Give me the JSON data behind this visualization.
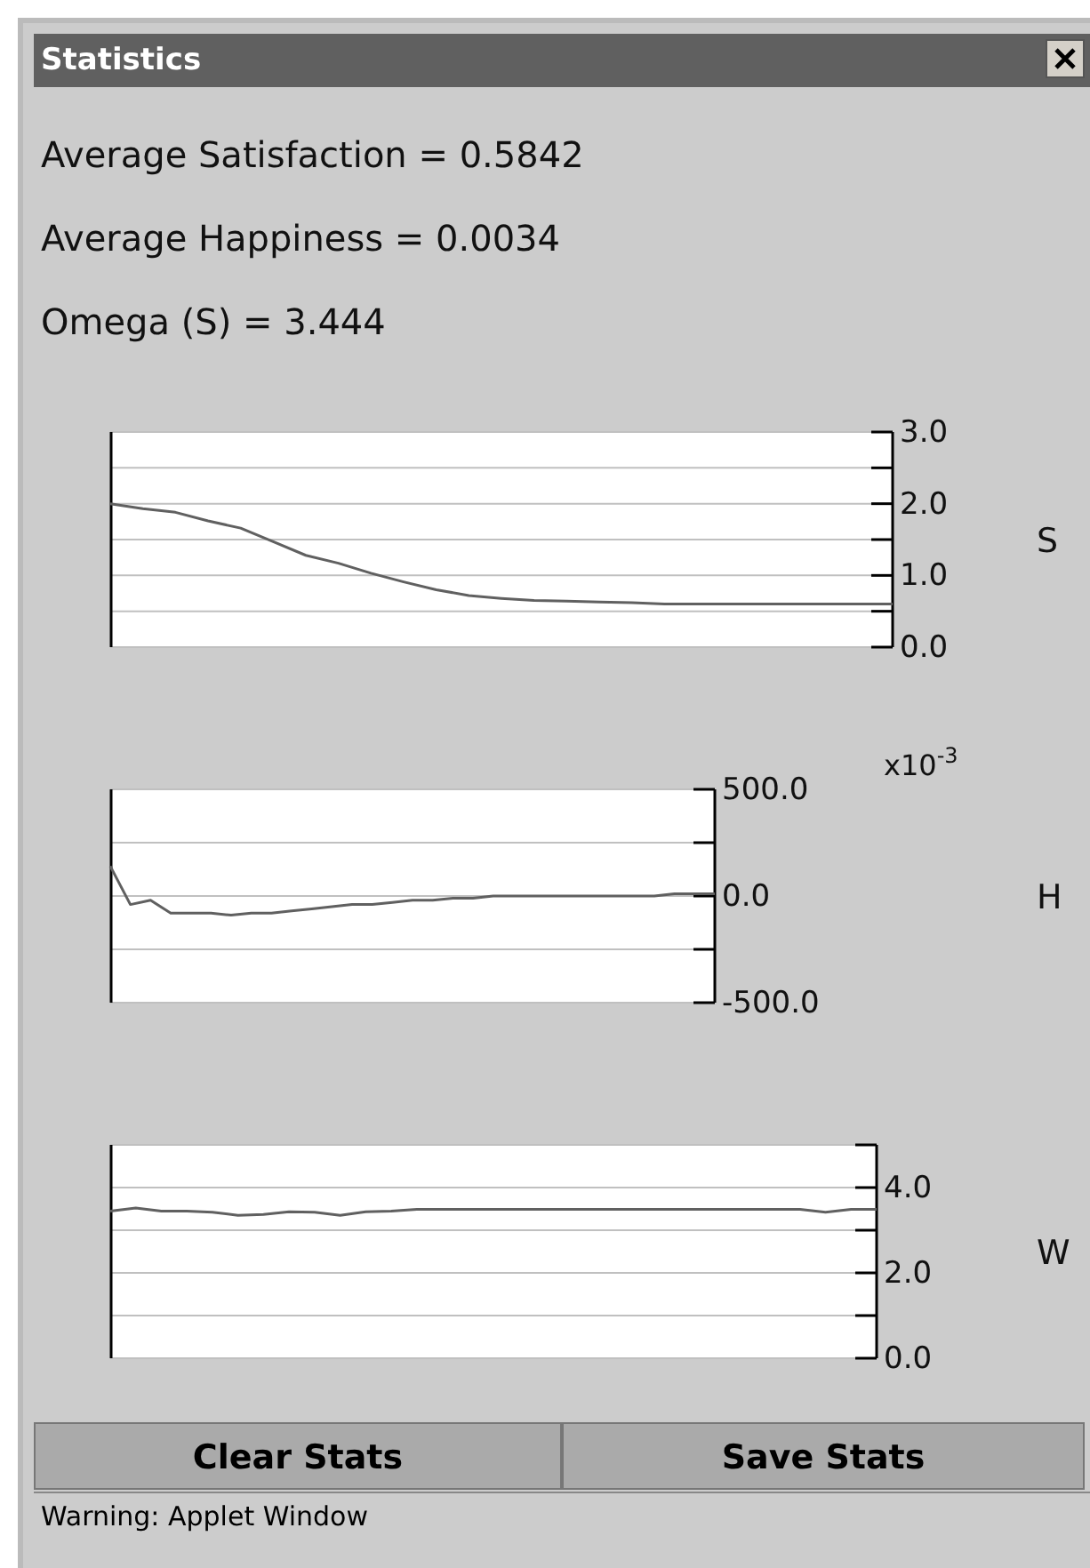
{
  "chart_data": [
    {
      "type": "line",
      "title": "Statistics",
      "annotations": [
        "Average Satisfaction = 0.5842",
        "Average Happiness = 0.0034",
        "Omega (S) = 3.444"
      ],
      "ylabel": "S",
      "categories": [
        null,
        null,
        null,
        null,
        null,
        null,
        null,
        null,
        null,
        null,
        null,
        null,
        null,
        null,
        null,
        null,
        null,
        null,
        null,
        null,
        null,
        null,
        null,
        null,
        null
      ],
      "series": [
        {
          "color": "#606060",
          "values": [
            2.0,
            1.93,
            1.88,
            1.76,
            1.66,
            1.47,
            1.28,
            1.17,
            1.03,
            0.91,
            0.8,
            0.72,
            0.68,
            0.65,
            0.64,
            0.63,
            0.62,
            0.6,
            0.6,
            0.6,
            0.6,
            0.6,
            0.6,
            0.6,
            0.6
          ]
        }
      ],
      "ylim": [
        0,
        3
      ],
      "yticks": [
        {
          "value": 0,
          "label": "0.0"
        },
        {
          "value": 0.5,
          "label": null
        },
        {
          "value": 1,
          "label": "1.0"
        },
        {
          "value": 1.5,
          "label": null
        },
        {
          "value": 2,
          "label": "2.0"
        },
        {
          "value": 2.5,
          "label": null
        },
        {
          "value": 3,
          "label": "3.0"
        }
      ],
      "grid": "y",
      "tick_labels": "y"
    },
    {
      "type": "line",
      "annotations": [
        "x10$^{-3}$"
      ],
      "ylabel": "H",
      "categories": [
        null,
        null,
        null,
        null,
        null,
        null,
        null,
        null,
        null,
        null,
        null,
        null,
        null,
        null,
        null,
        null,
        null,
        null,
        null,
        null,
        null,
        null,
        null,
        null,
        null,
        null,
        null,
        null,
        null,
        null,
        null
      ],
      "series": [
        {
          "color": "#606060",
          "values": [
            140,
            -40,
            -20,
            -80,
            -80,
            -80,
            -90,
            -80,
            -80,
            -70,
            -60,
            -50,
            -40,
            -40,
            -30,
            -20,
            -20,
            -10,
            -10,
            0,
            0,
            0,
            0,
            0,
            0,
            0,
            0,
            0,
            10,
            10,
            10
          ]
        }
      ],
      "ylim": [
        -500,
        500
      ],
      "yticks": [
        {
          "value": -500,
          "label": "-500.0"
        },
        {
          "value": -250,
          "label": null
        },
        {
          "value": 0,
          "label": "0.0"
        },
        {
          "value": 250,
          "label": null
        },
        {
          "value": 500,
          "label": "500.0"
        }
      ],
      "grid": "y",
      "tick_labels": "y"
    },
    {
      "type": "line",
      "annotations": [
        "Clear Stats",
        "Save Stats",
        "Warning: Applet Window"
      ],
      "ylabel": "W",
      "categories": [
        null,
        null,
        null,
        null,
        null,
        null,
        null,
        null,
        null,
        null,
        null,
        null,
        null,
        null,
        null,
        null,
        null,
        null,
        null,
        null,
        null,
        null,
        null,
        null,
        null,
        null,
        null,
        null,
        null,
        null,
        null
      ],
      "series": [
        {
          "color": "#606060",
          "values": [
            3.45,
            3.52,
            3.45,
            3.45,
            3.42,
            3.35,
            3.37,
            3.43,
            3.42,
            3.35,
            3.43,
            3.45,
            3.49,
            3.49,
            3.49,
            3.49,
            3.49,
            3.49,
            3.49,
            3.49,
            3.49,
            3.49,
            3.49,
            3.49,
            3.49,
            3.49,
            3.49,
            3.49,
            3.42,
            3.49,
            3.49
          ]
        }
      ],
      "ylim": [
        0,
        5
      ],
      "yticks": [
        {
          "value": 0,
          "label": "0.0"
        },
        {
          "value": 1,
          "label": null
        },
        {
          "value": 2,
          "label": "2.0"
        },
        {
          "value": 3,
          "label": null
        },
        {
          "value": 4,
          "label": "4.0"
        },
        {
          "value": 5,
          "label": null
        }
      ],
      "grid": "y",
      "tick_labels": "y"
    }
  ]
}
